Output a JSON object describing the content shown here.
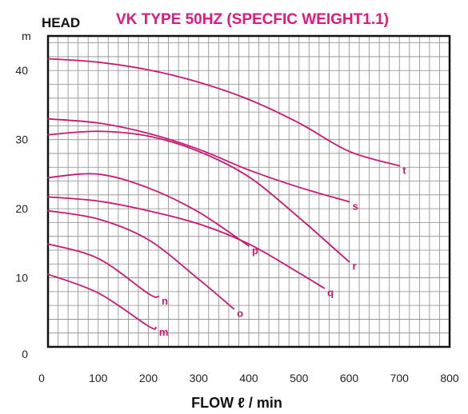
{
  "chart_data": {
    "type": "line",
    "title": "VK TYPE 50HZ (SPECFIC WEIGHT1.1)",
    "ylabel": "HEAD",
    "yunit": "m",
    "xlabel": "FLOW ℓ / min",
    "xlim": [
      0,
      800
    ],
    "ylim": [
      0,
      45
    ],
    "xticks": [
      0,
      100,
      200,
      300,
      400,
      500,
      600,
      700,
      800
    ],
    "yticks": [
      0,
      10,
      20,
      30,
      40
    ],
    "grid": true,
    "series": [
      {
        "name": "t",
        "x": [
          0,
          100,
          200,
          300,
          400,
          500,
          600,
          700
        ],
        "y": [
          41.7,
          41.2,
          40.1,
          38.3,
          35.8,
          32.4,
          28.3,
          26.2
        ]
      },
      {
        "name": "s",
        "x": [
          0,
          100,
          200,
          300,
          400,
          500,
          600
        ],
        "y": [
          33.0,
          32.4,
          30.9,
          28.6,
          25.6,
          23.1,
          21.0
        ]
      },
      {
        "name": "r",
        "x": [
          0,
          100,
          200,
          300,
          400,
          500,
          600
        ],
        "y": [
          30.7,
          31.2,
          30.5,
          28.3,
          24.6,
          18.7,
          12.3
        ]
      },
      {
        "name": "q",
        "x": [
          0,
          100,
          200,
          300,
          400,
          500,
          550
        ],
        "y": [
          21.7,
          21.1,
          19.7,
          17.8,
          14.9,
          10.7,
          8.5
        ]
      },
      {
        "name": "p",
        "x": [
          0,
          100,
          200,
          300,
          400
        ],
        "y": [
          24.5,
          25.0,
          23.0,
          19.5,
          14.6
        ]
      },
      {
        "name": "o",
        "x": [
          0,
          100,
          200,
          300,
          370
        ],
        "y": [
          19.7,
          18.5,
          15.5,
          9.8,
          5.5
        ]
      },
      {
        "name": "n",
        "x": [
          0,
          100,
          200,
          220
        ],
        "y": [
          14.9,
          12.8,
          7.7,
          7.3
        ]
      },
      {
        "name": "m",
        "x": [
          0,
          100,
          200,
          215
        ],
        "y": [
          10.5,
          7.8,
          3.0,
          2.8
        ]
      }
    ],
    "colors": {
      "curve": "#c81874",
      "title": "#e0197d",
      "grid": "#8a8a8a",
      "frame": "#111111"
    }
  }
}
